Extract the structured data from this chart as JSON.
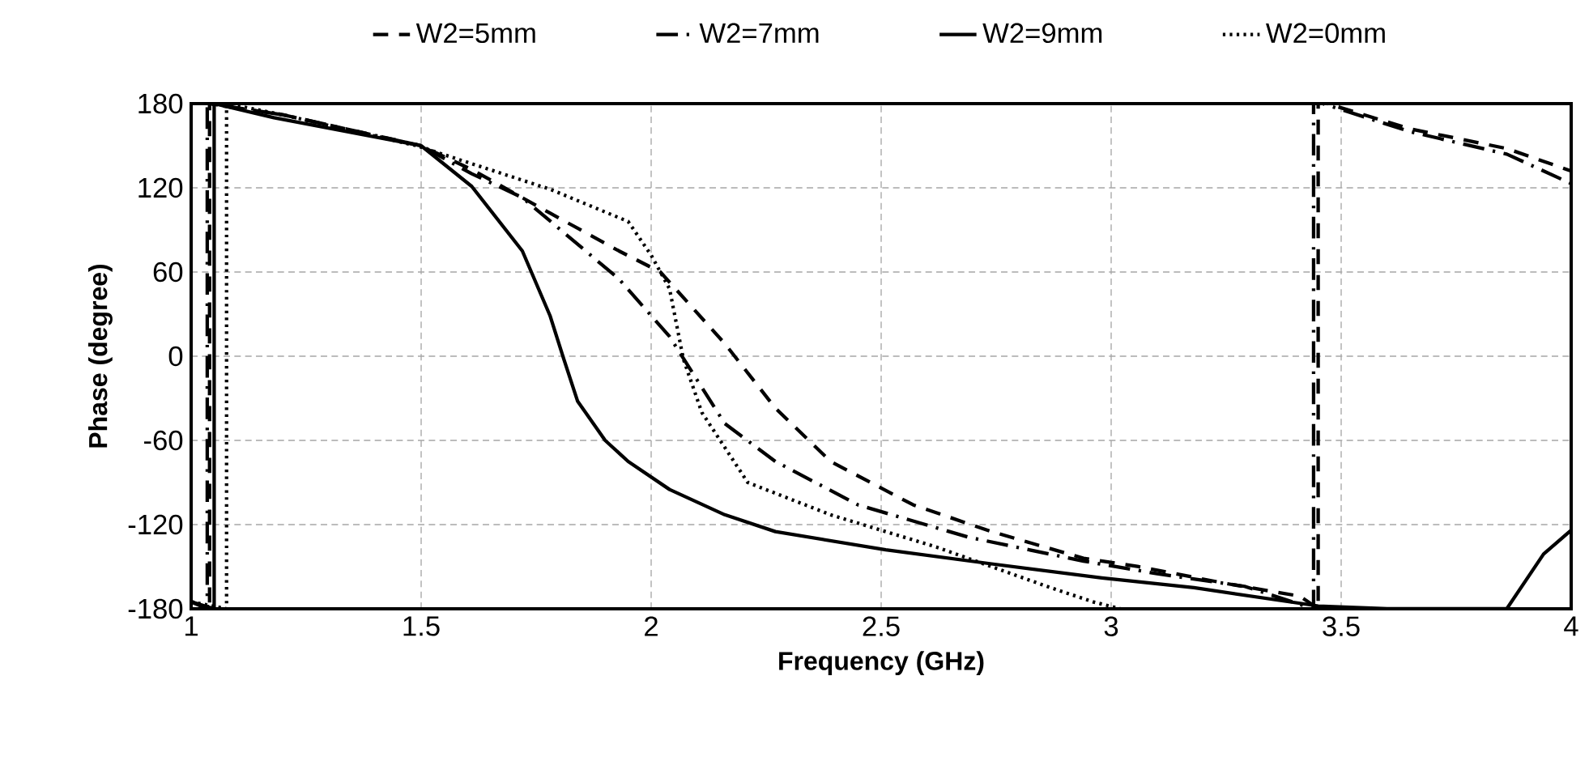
{
  "chart_data": {
    "type": "line",
    "xlabel": "Frequency (GHz)",
    "ylabel": "Phase (degree)",
    "xlim": [
      1,
      4
    ],
    "ylim": [
      -180,
      180
    ],
    "xticks": [
      1,
      1.5,
      2,
      2.5,
      3,
      3.5,
      4
    ],
    "yticks": [
      -180,
      -120,
      -60,
      0,
      60,
      120,
      180
    ],
    "grid": true,
    "legend": "top",
    "marker": "none",
    "series": [
      {
        "name": "W2=5mm",
        "color": "#000000",
        "line_style": "dashed",
        "x": [
          1.0,
          1.04,
          1.04,
          1.2,
          1.5,
          1.61,
          1.78,
          1.93,
          2.02,
          2.16,
          2.27,
          2.39,
          2.57,
          2.74,
          2.94,
          3.06,
          3.25,
          3.41,
          3.45,
          3.45,
          3.47,
          3.65,
          3.86,
          4.0
        ],
        "values": [
          -175,
          -180,
          180,
          172,
          150,
          133,
          102,
          75,
          60,
          9,
          -37,
          -75,
          -106,
          -125,
          -144,
          -150,
          -162,
          -171,
          -180,
          180,
          180,
          162,
          148,
          132
        ]
      },
      {
        "name": "W2=7mm",
        "color": "#000000",
        "line_style": "dashdot",
        "x": [
          1.0,
          1.035,
          1.035,
          1.2,
          1.5,
          1.61,
          1.72,
          1.93,
          2.04,
          2.16,
          2.27,
          2.45,
          2.69,
          2.94,
          3.1,
          3.29,
          3.44,
          3.44,
          3.46,
          3.65,
          3.86,
          4.0
        ],
        "values": [
          -175,
          -180,
          180,
          172,
          150,
          130,
          113,
          55,
          14,
          -48,
          -75,
          -106,
          -129,
          -146,
          -155,
          -164,
          -180,
          180,
          180,
          160,
          144,
          123
        ]
      },
      {
        "name": "W2=9mm",
        "color": "#000000",
        "line_style": "solid",
        "x": [
          1.0,
          1.05,
          1.05,
          1.18,
          1.5,
          1.61,
          1.72,
          1.78,
          1.81,
          1.84,
          1.9,
          1.95,
          2.04,
          2.16,
          2.27,
          2.51,
          2.74,
          2.98,
          3.18,
          3.45,
          3.6,
          3.86,
          3.94,
          4.0
        ],
        "values": [
          -175,
          -180,
          180,
          170,
          150,
          121,
          75,
          29,
          -2,
          -32,
          -60,
          -75,
          -95,
          -113,
          -125,
          -138,
          -148,
          -158,
          -165,
          -178,
          -180,
          -180,
          -141,
          -124
        ]
      },
      {
        "name": "W2=0mm",
        "color": "#000000",
        "line_style": "dotted",
        "x": [
          1.0,
          1.077,
          1.077,
          1.2,
          1.49,
          1.78,
          1.95,
          2.0,
          2.04,
          2.07,
          2.11,
          2.21,
          2.39,
          2.62,
          2.86,
          2.96,
          3.02
        ],
        "values": [
          -175,
          -180,
          180,
          172,
          150,
          119,
          96,
          72,
          48,
          -2,
          -40,
          -90,
          -113,
          -136,
          -164,
          -175,
          -180
        ]
      }
    ]
  }
}
